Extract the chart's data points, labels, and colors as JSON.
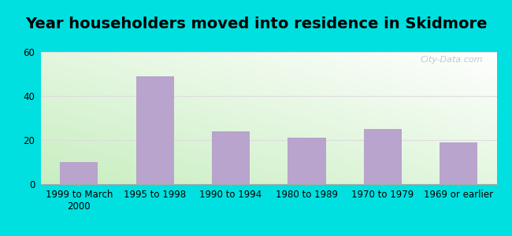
{
  "title": "Year householders moved into residence in Skidmore",
  "categories": [
    "1999 to March\n2000",
    "1995 to 1998",
    "1990 to 1994",
    "1980 to 1989",
    "1970 to 1979",
    "1969 or earlier"
  ],
  "values": [
    10,
    49,
    24,
    21,
    25,
    19
  ],
  "bar_color": "#b8a4cc",
  "ylim": [
    0,
    60
  ],
  "yticks": [
    0,
    20,
    40,
    60
  ],
  "background_outer": "#00e0e0",
  "title_fontsize": 14,
  "tick_fontsize": 8.5,
  "watermark": "City-Data.com",
  "grad_colors": [
    "#c8eec0",
    "#ffffff"
  ],
  "grid_color": "#dddddd"
}
